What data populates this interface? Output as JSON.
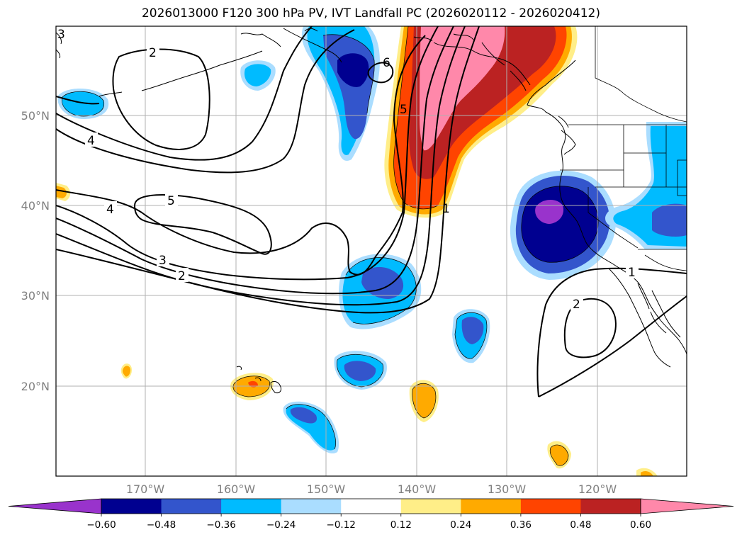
{
  "title": "2026013000 F120 300 hPa PV, IVT Landfall PC (2026020112 - 2026020412)",
  "map": {
    "extent": {
      "lon_min": -180,
      "lon_max": -110,
      "lat_min": 10,
      "lat_max": 60
    },
    "gridlines": true,
    "lon_ticks": [
      {
        "lon": -170,
        "label": "170°W"
      },
      {
        "lon": -160,
        "label": "160°W"
      },
      {
        "lon": -150,
        "label": "150°W"
      },
      {
        "lon": -140,
        "label": "140°W"
      },
      {
        "lon": -130,
        "label": "130°W"
      },
      {
        "lon": -120,
        "label": "120°W"
      }
    ],
    "lat_ticks": [
      {
        "lat": 20,
        "label": "20°N"
      },
      {
        "lat": 30,
        "label": "30°N"
      },
      {
        "lat": 40,
        "label": "40°N"
      },
      {
        "lat": 50,
        "label": "50°N"
      }
    ],
    "pv_contour_labels": [
      "2",
      "4",
      "5",
      "4",
      "3",
      "2",
      "6",
      "5",
      "1",
      "1",
      "2",
      "3"
    ]
  },
  "colorbar": {
    "extend": "both",
    "levels": [
      -0.72,
      -0.6,
      -0.48,
      -0.36,
      -0.24,
      -0.12,
      0.12,
      0.24,
      0.36,
      0.48,
      0.6,
      0.72
    ],
    "colors": [
      "#9933cc",
      "#000090",
      "#3355cc",
      "#00bbff",
      "#aaddff",
      "#ffffff",
      "#ffee88",
      "#ffaa00",
      "#ff4400",
      "#bb2222",
      "#ff88aa"
    ],
    "under_color": "#9933cc",
    "over_color": "#ff88aa",
    "tick_labels": [
      "−0.60",
      "−0.48",
      "−0.36",
      "−0.24",
      "−0.12",
      "0.12",
      "0.24",
      "0.36",
      "0.48",
      "0.60"
    ]
  }
}
